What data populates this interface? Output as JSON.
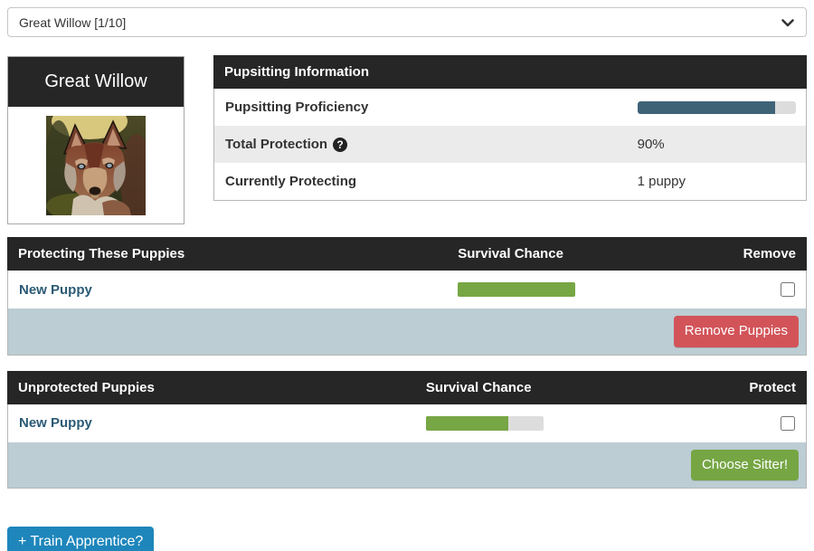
{
  "select": {
    "value": "Great Willow [1/10]",
    "icon": "chevron-down-icon"
  },
  "sitter_card": {
    "name": "Great Willow",
    "image": "wolf-portrait"
  },
  "pupsitting": {
    "title": "Pupsitting Information",
    "proficiency": {
      "label": "Pupsitting Proficiency",
      "percent": 87
    },
    "protection": {
      "label": "Total Protection",
      "help_glyph": "?",
      "value": "90%"
    },
    "currently": {
      "label": "Currently Protecting",
      "value": "1 puppy"
    }
  },
  "protecting_table": {
    "title": "Protecting These Puppies",
    "survival_header": "Survival Chance",
    "action_header": "Remove",
    "puppy": {
      "name": "New Puppy",
      "survival_percent": 100,
      "checked": false
    },
    "button_label": "Remove Puppies"
  },
  "unprotected_table": {
    "title": "Unprotected Puppies",
    "survival_header": "Survival Chance",
    "action_header": "Protect",
    "puppy": {
      "name": "New Puppy",
      "survival_percent": 70,
      "checked": false
    },
    "button_label": "Choose Sitter!"
  },
  "train_button_label": "+ Train Apprentice?",
  "colors": {
    "header_bg": "#262626",
    "proficiency_fill": "#3e6377",
    "survival_fill": "#77a644",
    "footer_bg": "#bccdd4",
    "remove_btn": "#d25459",
    "choose_btn": "#76a644",
    "train_btn": "#1e86bb",
    "puppy_link": "#2b5a75"
  }
}
